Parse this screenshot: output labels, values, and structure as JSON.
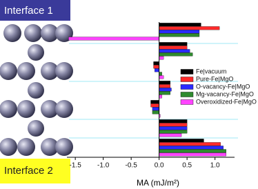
{
  "chart_data": {
    "type": "hbar",
    "panel_labels": [
      "Interface 1",
      "Interface 2"
    ],
    "xlabel": "MA (mJ/m²)",
    "categories": [
      null,
      null,
      null,
      null,
      null,
      null,
      null
    ],
    "series": [
      {
        "name": "Fe|vacuum",
        "color": "#000000",
        "values": [
          0.75,
          0.5,
          -0.1,
          0.2,
          -0.15,
          0.5,
          0.8
        ]
      },
      {
        "name": "Pure-Fe|MgO",
        "color": "#ff2a2a",
        "values": [
          1.08,
          0.5,
          -0.1,
          0.2,
          -0.15,
          0.5,
          1.1
        ]
      },
      {
        "name": "O-vacancy-Fe|MgO",
        "color": "#2a2aff",
        "values": [
          0.72,
          0.55,
          -0.08,
          0.22,
          -0.12,
          0.5,
          1.15
        ]
      },
      {
        "name": "Mg-vacancy-Fe|MgO",
        "color": "#2e8b2e",
        "values": [
          0.72,
          0.6,
          0.05,
          0.2,
          -0.12,
          0.5,
          1.2
        ]
      },
      {
        "name": "Overoxidized-Fe|MgO",
        "color": "#ff44ff",
        "values": [
          -1.62,
          0.08,
          0.08,
          0.05,
          0.02,
          0.4,
          1.2
        ]
      }
    ],
    "xlim": [
      -1.65,
      1.35
    ],
    "xticks": [
      -1.5,
      {
        "value": -1,
        "label": "-1.0"
      },
      -0.5,
      {
        "value": 0,
        "label": "0.0"
      },
      0.5,
      {
        "value": 1,
        "label": "1.0"
      }
    ],
    "legend": "right"
  }
}
